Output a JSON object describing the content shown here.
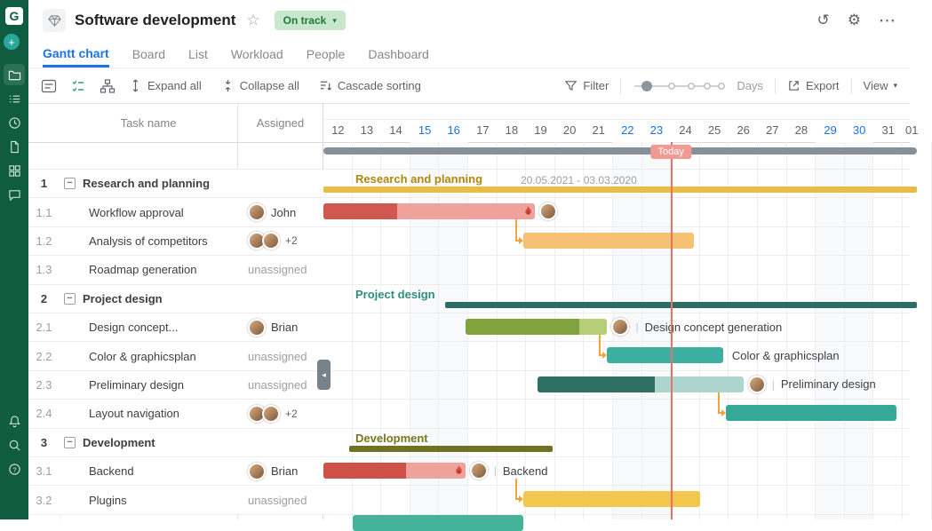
{
  "sidebar": {
    "logo_letter": "G",
    "top_icons": [
      "add",
      "projects-folder",
      "task-list",
      "history-clock",
      "documents",
      "apps-grid",
      "comments"
    ],
    "bottom_icons": [
      "notifications-bell",
      "search",
      "help"
    ]
  },
  "header": {
    "project_icon": "diamond-icon",
    "title": "Software development",
    "status": "On track",
    "tabs": [
      {
        "label": "Gantt chart",
        "active": true
      },
      {
        "label": "Board",
        "active": false
      },
      {
        "label": "List",
        "active": false
      },
      {
        "label": "Workload",
        "active": false
      },
      {
        "label": "People",
        "active": false
      },
      {
        "label": "Dashboard",
        "active": false
      }
    ]
  },
  "toolbar": {
    "left_icons": [
      "checklist",
      "task-check",
      "hierarchy"
    ],
    "expand_all": "Expand all",
    "collapse_all": "Collapse all",
    "cascade_sorting": "Cascade sorting",
    "filter": "Filter",
    "zoom_unit": "Days",
    "export": "Export",
    "view": "View"
  },
  "table": {
    "columns": [
      "Task name",
      "Assigned"
    ],
    "rows": [
      {
        "num": "1",
        "name": "Research and planning",
        "type": "group",
        "assigned": "",
        "avatars": 0
      },
      {
        "num": "1.1",
        "name": "Workflow approval",
        "type": "task",
        "assigned": "John",
        "avatars": 1
      },
      {
        "num": "1.2",
        "name": "Analysis of competitors",
        "type": "task",
        "assigned": "+2",
        "avatars": 2
      },
      {
        "num": "1.3",
        "name": "Roadmap generation",
        "type": "task",
        "assigned": "unassigned",
        "avatars": 0
      },
      {
        "num": "2",
        "name": "Project design",
        "type": "group",
        "assigned": "",
        "avatars": 0
      },
      {
        "num": "2.1",
        "name": "Design concept...",
        "type": "task",
        "assigned": "Brian",
        "avatars": 1
      },
      {
        "num": "2.2",
        "name": "Color & graphicsplan",
        "type": "task",
        "assigned": "unassigned",
        "avatars": 0
      },
      {
        "num": "2.3",
        "name": "Preliminary design",
        "type": "task",
        "assigned": "unassigned",
        "avatars": 0
      },
      {
        "num": "2.4",
        "name": "Layout navigation",
        "type": "task",
        "assigned": "+2",
        "avatars": 2
      },
      {
        "num": "3",
        "name": "Development",
        "type": "group",
        "assigned": "",
        "avatars": 0
      },
      {
        "num": "3.1",
        "name": "Backend",
        "type": "task",
        "assigned": "Brian",
        "avatars": 1
      },
      {
        "num": "3.2",
        "name": "Plugins",
        "type": "task",
        "assigned": "unassigned",
        "avatars": 0
      }
    ]
  },
  "timeline": {
    "days": [
      "12",
      "13",
      "14",
      "15",
      "16",
      "17",
      "18",
      "19",
      "20",
      "21",
      "22",
      "23",
      "24",
      "25",
      "26",
      "27",
      "28",
      "29",
      "30",
      "31",
      "01"
    ],
    "weekend_days": [
      "15",
      "16",
      "22",
      "23",
      "29",
      "30"
    ],
    "today_label": "Today",
    "today_day": "24"
  },
  "gantt": {
    "project_bar": {
      "start": 0,
      "duration": 20.5,
      "color": "#87909a"
    },
    "rows": [
      {
        "type": "group",
        "label": "Research and planning",
        "label_color": "#b1870f",
        "date_range": "20.05.2021 - 03.03.2020",
        "bar": {
          "start": 0,
          "duration": 20.5,
          "color": "#e9bc44"
        }
      },
      {
        "type": "task",
        "bar": {
          "start": 0,
          "duration": 7.3,
          "color": "#efa29b",
          "fill": "#d15850",
          "progress": 0.35
        },
        "fire": true,
        "avatar": true,
        "label": ""
      },
      {
        "type": "task",
        "bar": {
          "start": 6.9,
          "duration": 5.9,
          "color": "#f6c172"
        },
        "label": ""
      },
      {
        "type": "empty"
      },
      {
        "type": "group",
        "label": "Project design",
        "label_color": "#2e8f80",
        "date_range": "",
        "bar": {
          "start": 4.2,
          "duration": 16.3,
          "color": "#2c6e63"
        }
      },
      {
        "type": "task",
        "bar": {
          "start": 4.9,
          "duration": 4.9,
          "color": "#b6ce77",
          "fill": "#80a33d",
          "progress": 0.8
        },
        "avatar": true,
        "label": "Design concept generation"
      },
      {
        "type": "task",
        "bar": {
          "start": 9.8,
          "duration": 4.0,
          "color": "#3bafa0"
        },
        "label": "Color & graphicsplan"
      },
      {
        "type": "task",
        "bar": {
          "start": 7.4,
          "duration": 7.1,
          "color": "#aed5cd",
          "fill": "#2f6f64",
          "progress": 0.57
        },
        "avatar": true,
        "label": "Preliminary design"
      },
      {
        "type": "task",
        "bar": {
          "start": 13.9,
          "duration": 5.9,
          "color": "#36a897"
        },
        "label": ""
      },
      {
        "type": "group",
        "label": "Development",
        "label_color": "#75771f",
        "date_range": "",
        "bar": {
          "start": 0.9,
          "duration": 7.0,
          "color": "#6e7222"
        }
      },
      {
        "type": "task",
        "bar": {
          "start": 0,
          "duration": 4.9,
          "color": "#efa29b",
          "fill": "#d0514a",
          "progress": 0.58
        },
        "fire": true,
        "avatar": true,
        "label": "Backend"
      },
      {
        "type": "task",
        "bar": {
          "start": 6.9,
          "duration": 6.1,
          "color": "#f3c64e"
        },
        "label": ""
      }
    ],
    "connectors": [
      {
        "from": 1,
        "to": 2
      },
      {
        "from": 5,
        "to": 6
      },
      {
        "from": 7,
        "to": 8
      },
      {
        "from": 10,
        "to": 11
      }
    ],
    "partial_next_bar": {
      "start": 1.0,
      "duration": 5.9,
      "color": "#45b29a"
    }
  },
  "colors": {
    "accent_blue": "#1a73e8",
    "sidebar_green": "#0f5c40",
    "status_green": "#1e7b34",
    "today_red": "#e57368",
    "connector_orange": "#f2a33b"
  }
}
